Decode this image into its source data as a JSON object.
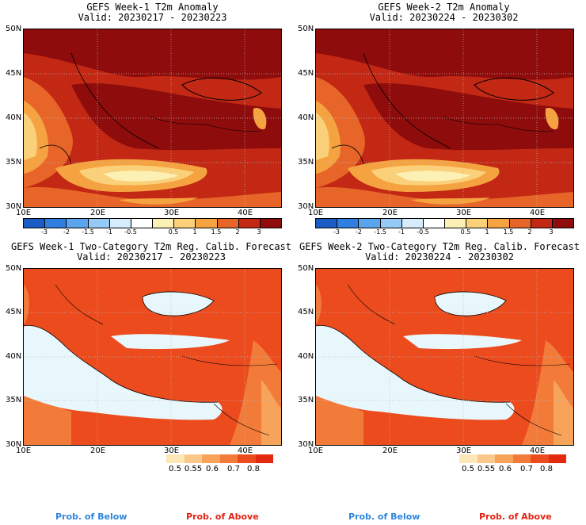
{
  "panels": {
    "tl": {
      "title1": "GEFS Week-1 T2m Anomaly",
      "title2": "Valid: 20230217 - 20230223"
    },
    "tr": {
      "title1": "GEFS Week-2 T2m Anomaly",
      "title2": "Valid: 20230224 - 20230302"
    },
    "bl": {
      "title1": "GEFS Week-1 Two-Category T2m Reg. Calib. Forecast",
      "title2": "Valid: 20230217 - 20230223"
    },
    "br": {
      "title1": "GEFS Week-2 Two-Category T2m Reg. Calib. Forecast",
      "title2": "Valid: 20230224 - 20230302"
    }
  },
  "axes": {
    "lat_labels": [
      "50N",
      "45N",
      "40N",
      "35N",
      "30N"
    ],
    "lon_labels": [
      "10E",
      "20E",
      "30E",
      "40E"
    ]
  },
  "anomaly_colorbar": {
    "labels": [
      "-3",
      "-2",
      "-1.5",
      "-1",
      "-0.5",
      "0.5",
      "1",
      "1.5",
      "2",
      "3"
    ],
    "colors": [
      "#1a5bc4",
      "#2f7fe0",
      "#5aa5ee",
      "#95c9f6",
      "#d4ecfb",
      "#ffffff",
      "#fdf0b4",
      "#fbd07a",
      "#f5a340",
      "#e8652a",
      "#c22814",
      "#8e0c0c"
    ]
  },
  "prob_colorbar": {
    "labels": [
      "0.5",
      "0.55",
      "0.6",
      "0.7",
      "0.8"
    ],
    "colors": [
      "#fde7b6",
      "#fbc88a",
      "#f7a35a",
      "#f27b3a",
      "#ec4b1e",
      "#e32a10"
    ]
  },
  "prob_labels": {
    "below": "Prob. of Below",
    "above": "Prob. of Above",
    "below_color": "#2e86de",
    "above_color": "#e32414"
  }
}
